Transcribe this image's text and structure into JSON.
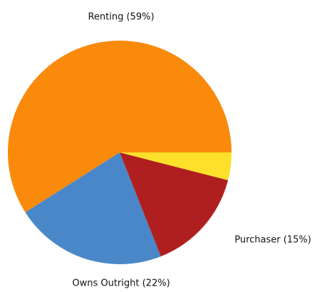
{
  "chart_data": {
    "type": "pie",
    "categories": [
      "Renting (59%)",
      "Owns Outright (22%)",
      "Purchaser (15%)",
      null
    ],
    "values": [
      59,
      22,
      15,
      4
    ],
    "colors": [
      "#f98a0c",
      "#4a87c8",
      "#b01f1f",
      "#fde02a"
    ]
  }
}
